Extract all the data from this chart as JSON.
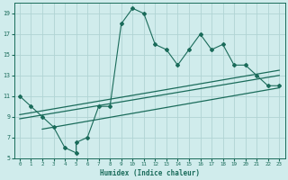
{
  "xlabel": "Humidex (Indice chaleur)",
  "bg_color": "#d0ecec",
  "grid_color": "#b0d4d4",
  "line_color": "#1a6b5a",
  "xlim": [
    -0.5,
    23.5
  ],
  "ylim": [
    5,
    20
  ],
  "xticks": [
    0,
    1,
    2,
    3,
    4,
    5,
    6,
    7,
    8,
    9,
    10,
    11,
    12,
    13,
    14,
    15,
    16,
    17,
    18,
    19,
    20,
    21,
    22,
    23
  ],
  "yticks": [
    5,
    7,
    9,
    11,
    13,
    15,
    17,
    19
  ],
  "main_x": [
    0,
    1,
    2,
    3,
    4,
    5,
    5,
    6,
    7,
    8,
    9,
    10,
    11,
    12,
    13,
    14,
    15,
    16,
    17,
    18,
    19,
    20,
    21,
    22,
    23
  ],
  "main_y": [
    11,
    10,
    9,
    8,
    6,
    5.5,
    6.5,
    7,
    10,
    10,
    18,
    19.5,
    19,
    16,
    15.5,
    14,
    15.5,
    17,
    15.5,
    16,
    14,
    14,
    13,
    12,
    12
  ],
  "line1_x": [
    0,
    23
  ],
  "line1_y": [
    9.2,
    13.5
  ],
  "line2_x": [
    0,
    23
  ],
  "line2_y": [
    8.8,
    13.0
  ],
  "line3_x": [
    2,
    23
  ],
  "line3_y": [
    7.8,
    11.8
  ]
}
